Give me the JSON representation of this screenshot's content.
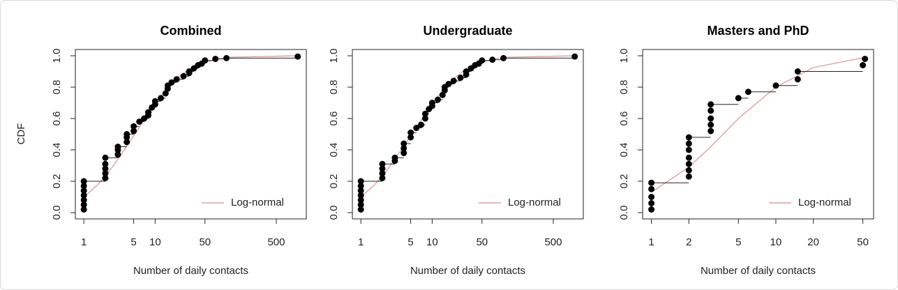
{
  "chart_data": [
    {
      "type": "ecdf",
      "title": "Combined",
      "xlabel": "Number of daily contacts",
      "ylabel": "CDF",
      "xscale": "log",
      "legend": "bottomright",
      "xlim": [
        0.76,
        1318
      ],
      "xticks": [
        1,
        5,
        10,
        50,
        500
      ],
      "ylim": [
        -0.04,
        1.04
      ],
      "yticks": [
        {
          "value": 0,
          "label": "0.0"
        },
        0.2,
        0.4,
        0.6,
        0.8,
        {
          "value": 1,
          "label": "1.0"
        }
      ],
      "points": {
        "color": "#000000",
        "x": [
          1,
          1,
          1,
          1,
          1,
          1,
          1,
          2,
          2,
          2,
          2,
          2,
          3,
          3,
          3,
          4,
          4,
          4,
          5,
          5,
          6,
          7,
          8,
          8,
          9,
          10,
          10,
          12,
          14,
          15,
          15,
          17,
          20,
          25,
          30,
          30,
          35,
          40,
          45,
          50,
          70,
          100,
          1000
        ],
        "values": [
          0.02,
          0.05,
          0.08,
          0.11,
          0.14,
          0.17,
          0.2,
          0.22,
          0.25,
          0.28,
          0.31,
          0.35,
          0.37,
          0.4,
          0.42,
          0.45,
          0.48,
          0.5,
          0.52,
          0.55,
          0.58,
          0.6,
          0.62,
          0.64,
          0.67,
          0.69,
          0.71,
          0.73,
          0.76,
          0.79,
          0.81,
          0.83,
          0.85,
          0.87,
          0.89,
          0.9,
          0.92,
          0.94,
          0.95,
          0.97,
          0.98,
          0.985,
          0.995
        ]
      },
      "curve": {
        "name": "Log-normal",
        "color": "#d9a3a3",
        "x": [
          1,
          1.5,
          2,
          3,
          5,
          7,
          10,
          20,
          30,
          50,
          100,
          1000
        ],
        "values": [
          0.1,
          0.17,
          0.23,
          0.34,
          0.49,
          0.59,
          0.7,
          0.855,
          0.915,
          0.96,
          0.99,
          1.0
        ]
      }
    },
    {
      "type": "ecdf",
      "title": "Undergraduate",
      "xlabel": "Number of daily contacts",
      "xscale": "log",
      "legend": "bottomright",
      "xlim": [
        0.76,
        1318
      ],
      "xticks": [
        1,
        5,
        10,
        50,
        500
      ],
      "ylim": [
        -0.04,
        1.04
      ],
      "yticks": [
        {
          "value": 0,
          "label": "0.0"
        },
        0.2,
        0.4,
        0.6,
        0.8,
        {
          "value": 1,
          "label": "1.0"
        }
      ],
      "points": {
        "color": "#000000",
        "x": [
          1,
          1,
          1,
          1,
          1,
          1,
          1,
          2,
          2,
          2,
          2,
          3,
          3,
          4,
          4,
          4,
          5,
          5,
          6,
          7,
          8,
          8,
          9,
          10,
          10,
          12,
          14,
          15,
          15,
          17,
          20,
          25,
          30,
          30,
          35,
          40,
          45,
          50,
          70,
          100,
          1000
        ],
        "values": [
          0.02,
          0.05,
          0.08,
          0.11,
          0.14,
          0.17,
          0.2,
          0.22,
          0.25,
          0.28,
          0.31,
          0.33,
          0.35,
          0.38,
          0.41,
          0.44,
          0.48,
          0.51,
          0.54,
          0.56,
          0.6,
          0.63,
          0.66,
          0.68,
          0.7,
          0.72,
          0.75,
          0.78,
          0.8,
          0.82,
          0.84,
          0.86,
          0.88,
          0.9,
          0.92,
          0.94,
          0.95,
          0.97,
          0.975,
          0.985,
          0.995
        ]
      },
      "curve": {
        "name": "Log-normal",
        "color": "#d9a3a3",
        "x": [
          1,
          1.5,
          2,
          3,
          5,
          7,
          10,
          20,
          30,
          50,
          100,
          1000
        ],
        "values": [
          0.1,
          0.17,
          0.23,
          0.34,
          0.49,
          0.59,
          0.7,
          0.855,
          0.915,
          0.96,
          0.99,
          1.0
        ]
      }
    },
    {
      "type": "ecdf",
      "title": "Masters and PhD",
      "xlabel": "Number of daily contacts",
      "xscale": "log",
      "legend": "bottomright",
      "xlim": [
        0.85,
        61
      ],
      "xticks": [
        1,
        2,
        5,
        10,
        20,
        50
      ],
      "ylim": [
        -0.04,
        1.04
      ],
      "yticks": [
        {
          "value": 0,
          "label": "0.0"
        },
        0.2,
        0.4,
        0.6,
        0.8,
        {
          "value": 1,
          "label": "1.0"
        }
      ],
      "points": {
        "color": "#000000",
        "x": [
          1,
          1,
          1,
          1,
          1,
          2,
          2,
          2,
          2,
          2,
          2,
          2,
          3,
          3,
          3,
          3,
          3,
          5,
          6,
          10,
          15,
          15,
          50,
          52
        ],
        "values": [
          0.02,
          0.06,
          0.1,
          0.15,
          0.19,
          0.23,
          0.27,
          0.31,
          0.35,
          0.4,
          0.44,
          0.48,
          0.52,
          0.56,
          0.6,
          0.65,
          0.69,
          0.73,
          0.77,
          0.81,
          0.85,
          0.9,
          0.94,
          0.98
        ]
      },
      "curve": {
        "name": "Log-normal",
        "color": "#d9a3a3",
        "x": [
          1,
          2,
          3,
          5,
          10,
          20,
          50,
          55
        ],
        "values": [
          0.13,
          0.29,
          0.42,
          0.6,
          0.8,
          0.925,
          0.987,
          0.99
        ]
      }
    }
  ]
}
